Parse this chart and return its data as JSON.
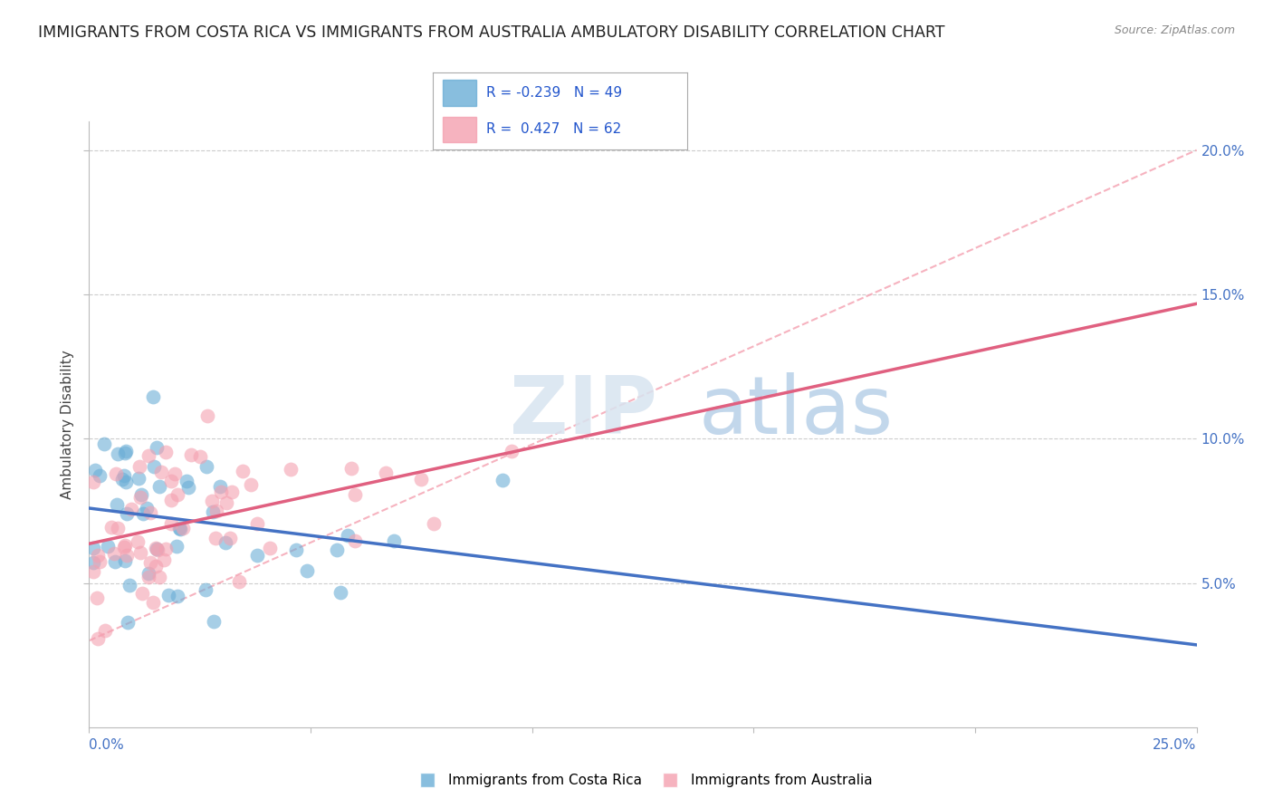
{
  "title": "IMMIGRANTS FROM COSTA RICA VS IMMIGRANTS FROM AUSTRALIA AMBULATORY DISABILITY CORRELATION CHART",
  "source": "Source: ZipAtlas.com",
  "ylabel": "Ambulatory Disability",
  "legend_label1": "Immigrants from Costa Rica",
  "legend_label2": "Immigrants from Australia",
  "R1": -0.239,
  "N1": 49,
  "R2": 0.427,
  "N2": 62,
  "color1": "#6baed6",
  "color2": "#f4a0b0",
  "line_color1": "#4472c4",
  "line_color2": "#e06080",
  "dash_color": "#f4a0b0",
  "xmin": 0.0,
  "xmax": 0.25,
  "ymin": 0.0,
  "ymax": 0.21,
  "yticks": [
    0.05,
    0.1,
    0.15,
    0.2
  ],
  "ytick_labels": [
    "5.0%",
    "10.0%",
    "15.0%",
    "20.0%"
  ],
  "xtick_left": "0.0%",
  "xtick_right": "25.0%",
  "watermark_zip": "ZIP",
  "watermark_atlas": "atlas",
  "background_color": "#ffffff",
  "grid_color": "#cccccc",
  "right_axis_color": "#4472c4",
  "title_fontsize": 12.5,
  "axis_label_fontsize": 11,
  "tick_fontsize": 11,
  "legend_fontsize": 11
}
